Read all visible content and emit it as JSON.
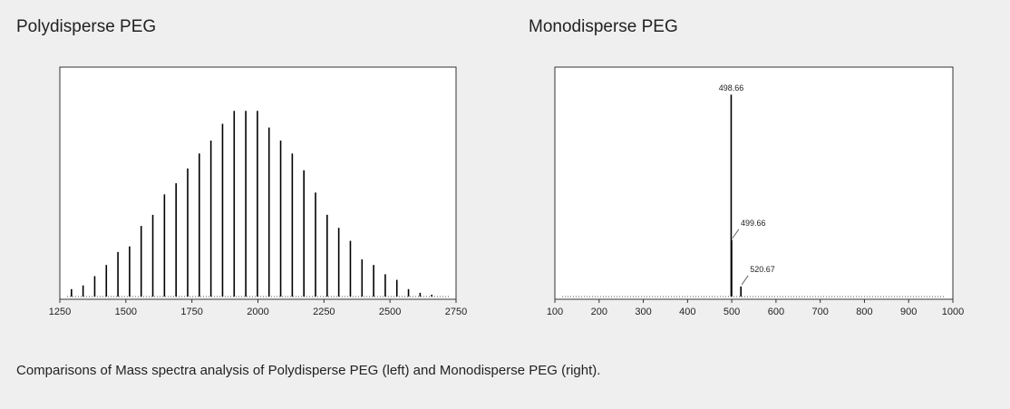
{
  "chart_data": [
    {
      "type": "spectrum",
      "title": "Polydisperse PEG",
      "x": [
        1294,
        1338,
        1382,
        1426,
        1470,
        1514,
        1558,
        1602,
        1646,
        1690,
        1734,
        1778,
        1822,
        1866,
        1910,
        1954,
        1998,
        2042,
        2086,
        2130,
        2174,
        2218,
        2262,
        2306,
        2350,
        2394,
        2438,
        2482,
        2526,
        2570,
        2614,
        2658
      ],
      "values": [
        4,
        6,
        11,
        17,
        24,
        27,
        38,
        44,
        55,
        61,
        69,
        77,
        84,
        93,
        100,
        100,
        100,
        91,
        84,
        77,
        68,
        56,
        44,
        37,
        30,
        20,
        17,
        12,
        9,
        4,
        2,
        1
      ],
      "color": "#000000",
      "xlim": [
        1250,
        2750
      ],
      "xticks": [
        1250,
        1500,
        1750,
        2000,
        2250,
        2500,
        2750
      ],
      "ylim": [
        0,
        125
      ]
    },
    {
      "type": "spectrum",
      "title": "Monodisperse PEG",
      "x": [
        498.66,
        499.66,
        520.67
      ],
      "values": [
        100,
        28,
        5
      ],
      "color": "#000000",
      "xlim": [
        100,
        1000
      ],
      "xticks": [
        100,
        200,
        300,
        400,
        500,
        600,
        700,
        800,
        900,
        1000
      ],
      "ylim": [
        0,
        115
      ],
      "peak_labels": true
    }
  ],
  "caption": "Comparisons of Mass spectra analysis of Polydisperse PEG (left) and Monodisperse PEG (right)."
}
